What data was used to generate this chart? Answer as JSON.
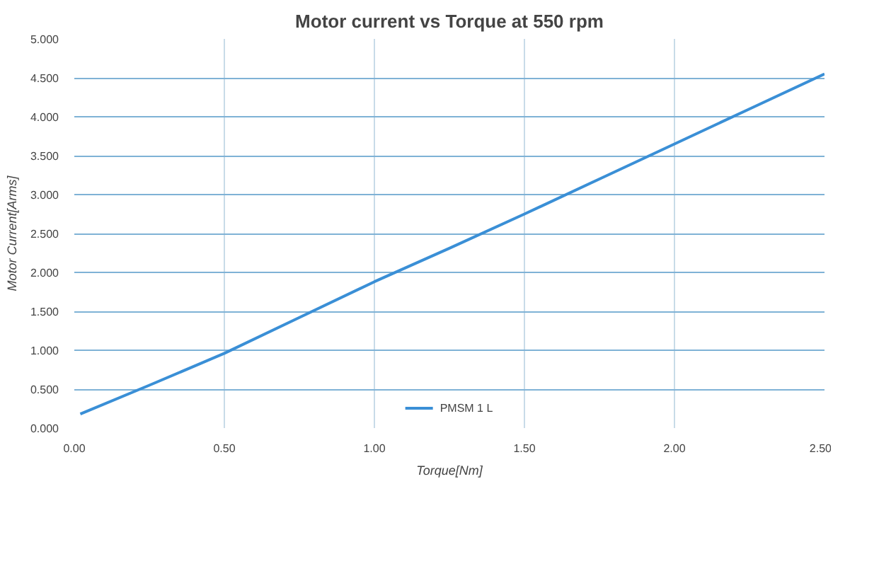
{
  "chart_data": {
    "type": "line",
    "title": "Motor current vs Torque at 550 rpm",
    "xlabel": "Torque[Nm]",
    "ylabel": "Motor Current[Arms]",
    "x": [
      0.02,
      0.25,
      0.5,
      0.75,
      1.0,
      1.25,
      1.5,
      1.75,
      2.0,
      2.25,
      2.5
    ],
    "series": [
      {
        "name": "PMSM 1 L",
        "color": "#3a8fd6",
        "values": [
          0.18,
          0.55,
          0.96,
          1.42,
          1.88,
          2.31,
          2.75,
          3.2,
          3.65,
          4.1,
          4.55
        ]
      }
    ],
    "xlim": [
      0,
      2.5
    ],
    "ylim": [
      0,
      5
    ],
    "xticks": [
      {
        "value": 0,
        "label": "0.00"
      },
      {
        "value": 0.5,
        "label": "0.50"
      },
      {
        "value": 1,
        "label": "1.00"
      },
      {
        "value": 1.5,
        "label": "1.50"
      },
      {
        "value": 2,
        "label": "2.00"
      },
      {
        "value": 2.5,
        "label": "2.50"
      }
    ],
    "yticks": [
      {
        "value": 0,
        "label": "0.000"
      },
      {
        "value": 0.5,
        "label": "0.500"
      },
      {
        "value": 1,
        "label": "1.000"
      },
      {
        "value": 1.5,
        "label": "1.500"
      },
      {
        "value": 2,
        "label": "2.000"
      },
      {
        "value": 2.5,
        "label": "2.500"
      },
      {
        "value": 3,
        "label": "3.000"
      },
      {
        "value": 3.5,
        "label": "3.500"
      },
      {
        "value": 4,
        "label": "4.000"
      },
      {
        "value": 4.5,
        "label": "4.500"
      },
      {
        "value": 5,
        "label": "5.000"
      }
    ],
    "grid": true,
    "legend": "bottom",
    "marker": "none",
    "line_style": "solid"
  }
}
